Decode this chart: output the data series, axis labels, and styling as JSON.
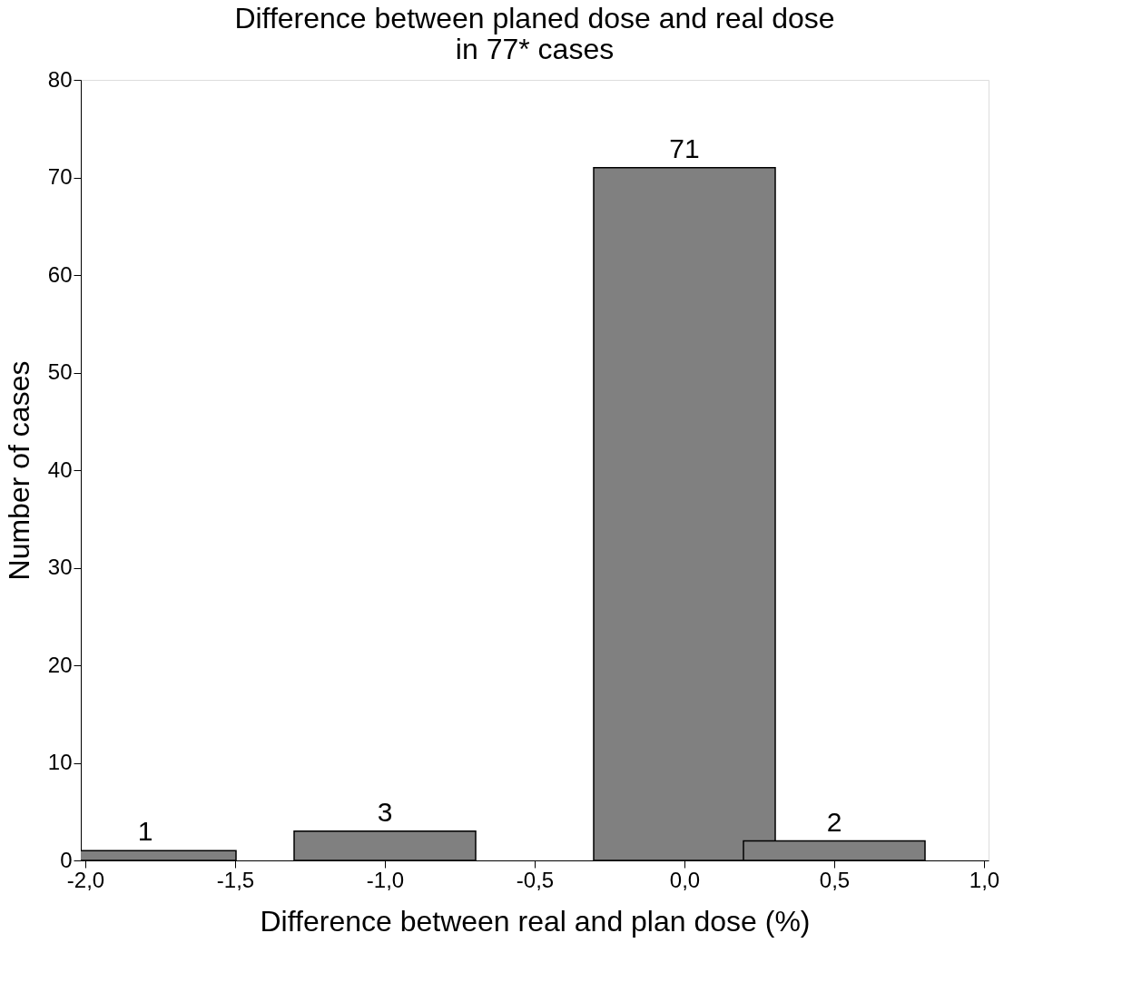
{
  "chart_data": {
    "type": "bar",
    "title": "Difference between planed dose and real dose\nin 77* cases",
    "xlabel": "Difference between real and plan dose (%)",
    "ylabel": "Number of cases",
    "x": [
      -1.8,
      -1.0,
      0.0,
      0.5
    ],
    "values": [
      1,
      3,
      71,
      2
    ],
    "color": "#808080",
    "data_labels": true,
    "xlim": [
      -2.0,
      1.0
    ],
    "ylim": [
      0,
      80
    ],
    "xticks": [
      {
        "value": -2.0,
        "label": "-2,0"
      },
      {
        "value": -1.5,
        "label": "-1,5"
      },
      {
        "value": -1.0,
        "label": "-1,0"
      },
      {
        "value": -0.5,
        "label": "-0,5"
      },
      {
        "value": 0.0,
        "label": "0,0"
      },
      {
        "value": 0.5,
        "label": "0,5"
      },
      {
        "value": 1.0,
        "label": "1,0"
      }
    ],
    "yticks": [
      0,
      10,
      20,
      30,
      40,
      50,
      60,
      70,
      80
    ],
    "grid": false
  }
}
